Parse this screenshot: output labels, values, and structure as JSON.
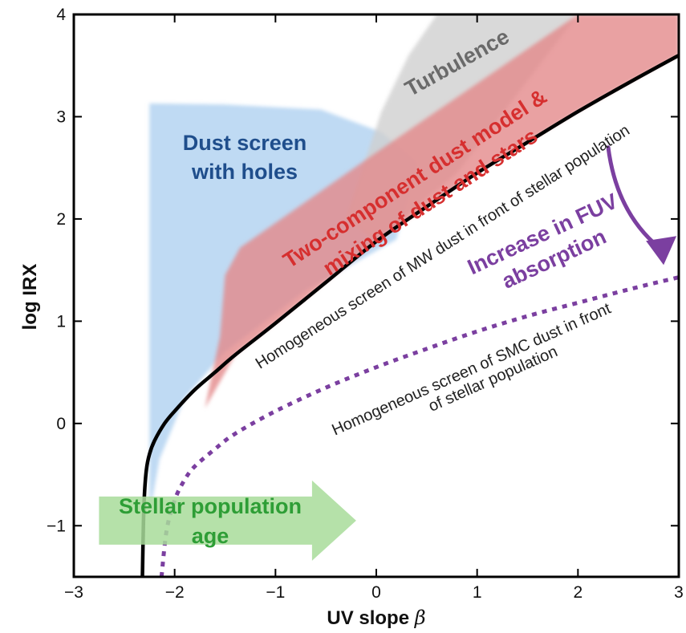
{
  "chart_data": {
    "type": "line",
    "xlabel": "UV slope",
    "xlabel_symbol": "β",
    "ylabel": "log IRX",
    "xlim": [
      -3,
      3
    ],
    "ylim": [
      -1.5,
      4
    ],
    "x_ticks": [
      -3,
      -2,
      -1,
      0,
      1,
      2,
      3
    ],
    "x_tick_labels": [
      "−3",
      "−2",
      "−1",
      "0",
      "1",
      "2",
      "3"
    ],
    "y_ticks": [
      -1,
      0,
      1,
      2,
      3,
      4
    ],
    "y_tick_labels": [
      "−1",
      "0",
      "1",
      "2",
      "3",
      "4"
    ],
    "grid": false,
    "series": [
      {
        "label": "Homogeneous screen of MW dust in front of stellar population",
        "style": "solid",
        "color": "#000000",
        "x": [
          -2.32,
          -2.31,
          -2.3,
          -2.28,
          -2.25,
          -2.2,
          -2.1,
          -2.0,
          -1.8,
          -1.6,
          -1.4,
          -1.0,
          -0.5,
          0.0,
          0.5,
          1.0,
          1.5,
          2.0,
          2.5,
          3.0
        ],
        "y": [
          -1.5,
          -1.0,
          -0.7,
          -0.45,
          -0.3,
          -0.17,
          0.0,
          0.12,
          0.33,
          0.5,
          0.67,
          0.98,
          1.38,
          1.78,
          2.12,
          2.45,
          2.75,
          3.05,
          3.33,
          3.6
        ]
      },
      {
        "label": "Homogeneous screen of SMC dust in front of stellar population",
        "style": "dotted",
        "color": "#7b3fa0",
        "x": [
          -2.13,
          -2.08,
          -2.0,
          -1.9,
          -1.8,
          -1.6,
          -1.4,
          -1.0,
          -0.5,
          0.0,
          0.5,
          1.0,
          1.5,
          2.0,
          2.5,
          3.0
        ],
        "y": [
          -1.5,
          -1.05,
          -0.75,
          -0.55,
          -0.42,
          -0.25,
          -0.1,
          0.12,
          0.35,
          0.55,
          0.73,
          0.9,
          1.05,
          1.18,
          1.31,
          1.43
        ]
      }
    ],
    "regions": [
      {
        "label_lines": [
          "Dust screen",
          "with holes"
        ],
        "color": "#a9cdef",
        "text_color": "#1f4e8c",
        "polygon": [
          [
            -2.25,
            -1.5
          ],
          [
            -2.25,
            3.13
          ],
          [
            -1.5,
            3.12
          ],
          [
            -0.55,
            3.07
          ],
          [
            0.05,
            2.85
          ],
          [
            0.4,
            2.55
          ],
          [
            0.2,
            1.8
          ],
          [
            -0.7,
            1.3
          ],
          [
            -1.5,
            0.7
          ],
          [
            -1.9,
            0.25
          ],
          [
            -2.15,
            -0.35
          ],
          [
            -2.25,
            -0.9
          ]
        ]
      },
      {
        "label_lines": [
          "Turbulence"
        ],
        "color": "#cfcfcf",
        "text_color": "#6a6a6a",
        "polygon": [
          [
            -0.3,
            2.0
          ],
          [
            0.05,
            3.05
          ],
          [
            0.32,
            3.6
          ],
          [
            0.6,
            4.0
          ],
          [
            2.0,
            4.0
          ],
          [
            0.8,
            2.45
          ],
          [
            0.0,
            1.78
          ]
        ]
      },
      {
        "label_lines": [
          "Two-component dust model &",
          "mixing of dust and stars"
        ],
        "color": "#e3898b",
        "text_color": "#d62f2f",
        "polygon": [
          [
            -1.7,
            0.15
          ],
          [
            -1.55,
            0.85
          ],
          [
            -1.5,
            1.45
          ],
          [
            -1.35,
            1.72
          ],
          [
            0.0,
            2.65
          ],
          [
            2.0,
            4.0
          ],
          [
            3.0,
            4.0
          ],
          [
            3.0,
            3.6
          ],
          [
            2.5,
            3.33
          ],
          [
            2.0,
            3.05
          ],
          [
            1.5,
            2.75
          ],
          [
            1.0,
            2.45
          ],
          [
            0.5,
            2.12
          ],
          [
            0.0,
            1.78
          ],
          [
            -0.5,
            1.38
          ],
          [
            -1.0,
            0.98
          ],
          [
            -1.4,
            0.67
          ]
        ]
      }
    ],
    "annotations": [
      {
        "label_lines": [
          "Increase in FUV",
          "absorption"
        ],
        "color": "#7b3fa0",
        "arrow_from": [
          2.3,
          2.7
        ],
        "arrow_to": [
          2.85,
          1.55
        ]
      },
      {
        "label_lines": [
          "Stellar population",
          "age"
        ],
        "color": "#a8dc9a",
        "text_color": "#2e9e36",
        "arrow_from": [
          -2.75,
          -0.95
        ],
        "arrow_to": [
          -0.2,
          -0.95
        ]
      }
    ]
  }
}
